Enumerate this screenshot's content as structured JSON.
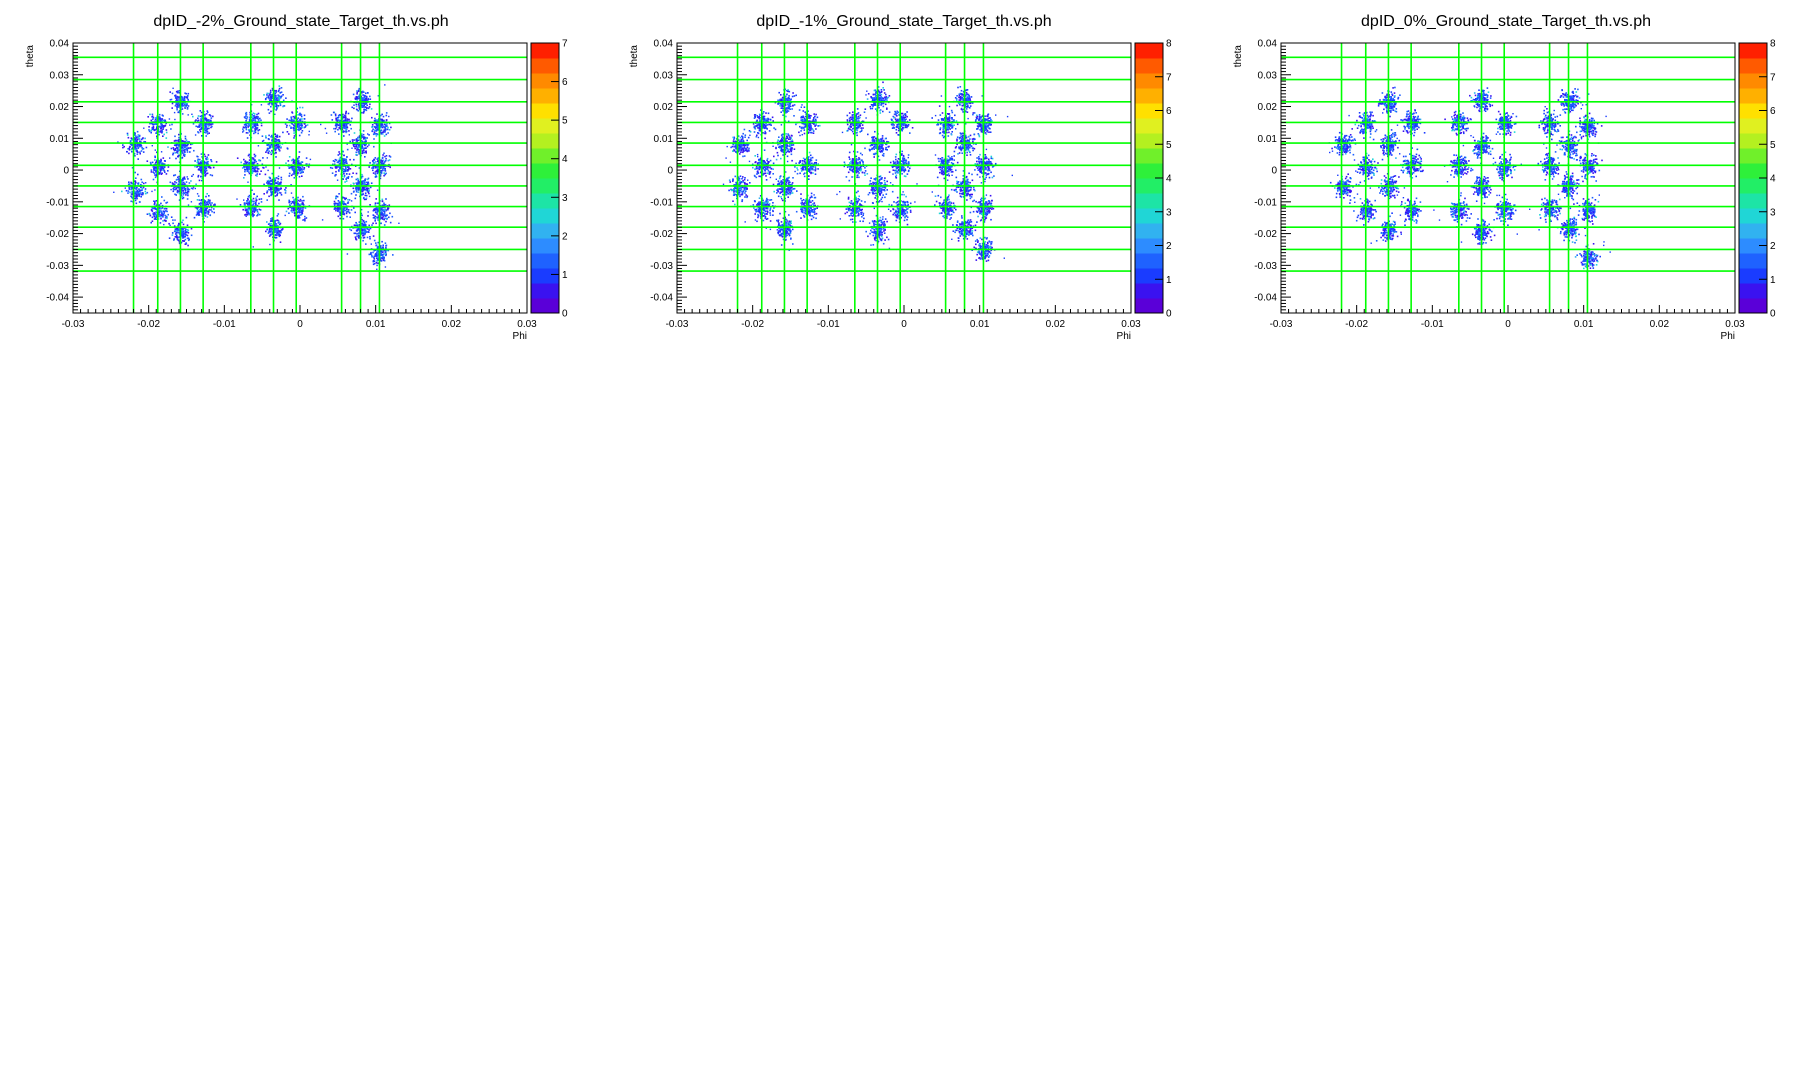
{
  "chart_data": [
    {
      "type": "heatmap",
      "title": "dpID_-2%_Ground_state_Target_th.vs.ph",
      "xlabel": "Phi",
      "ylabel": "theta",
      "xlim": [
        -0.03,
        0.03
      ],
      "ylim": [
        -0.045,
        0.04
      ],
      "x_ticks": [
        "-0.03",
        "-0.02",
        "-0.01",
        "0",
        "0.01",
        "0.02",
        "0.03"
      ],
      "y_ticks": [
        "-0.04",
        "-0.03",
        "-0.02",
        "-0.01",
        "0",
        "0.01",
        "0.02",
        "0.03",
        "0.04"
      ],
      "zlim": [
        0,
        7
      ],
      "z_ticks": [
        "0",
        "1",
        "2",
        "3",
        "4",
        "5",
        "6",
        "7"
      ],
      "grid_x": [
        -0.022,
        -0.0188,
        -0.0158,
        -0.0128,
        -0.0065,
        -0.0035,
        -0.0005,
        0.0055,
        0.008,
        0.0105
      ],
      "grid_y": [
        0.0355,
        0.0285,
        0.0215,
        0.015,
        0.0085,
        0.0015,
        -0.005,
        -0.0115,
        -0.018,
        -0.025,
        -0.0318
      ],
      "clusters": [
        [
          -0.0218,
          0.0082
        ],
        [
          -0.0218,
          -0.0062
        ],
        [
          -0.0188,
          0.0145
        ],
        [
          -0.0188,
          0.0012
        ],
        [
          -0.0188,
          -0.013
        ],
        [
          -0.0158,
          0.0215
        ],
        [
          -0.0158,
          0.0078
        ],
        [
          -0.0158,
          -0.0052
        ],
        [
          -0.0158,
          -0.0195
        ],
        [
          -0.0128,
          0.0148
        ],
        [
          -0.0128,
          0.0012
        ],
        [
          -0.0128,
          -0.0118
        ],
        [
          -0.0065,
          0.0148
        ],
        [
          -0.0065,
          0.0015
        ],
        [
          -0.0065,
          -0.0112
        ],
        [
          -0.0035,
          0.0225
        ],
        [
          -0.0035,
          0.0085
        ],
        [
          -0.0035,
          -0.0045
        ],
        [
          -0.0035,
          -0.018
        ],
        [
          -0.0005,
          0.015
        ],
        [
          -0.0005,
          0.0012
        ],
        [
          -0.0005,
          -0.0115
        ],
        [
          0.0055,
          0.015
        ],
        [
          0.0055,
          0.0015
        ],
        [
          0.0055,
          -0.0115
        ],
        [
          0.008,
          0.022
        ],
        [
          0.008,
          0.0082
        ],
        [
          0.008,
          -0.0052
        ],
        [
          0.008,
          -0.0185
        ],
        [
          0.0105,
          0.0142
        ],
        [
          0.0105,
          0.0015
        ],
        [
          0.0105,
          -0.0128
        ],
        [
          0.0105,
          -0.026
        ]
      ]
    },
    {
      "type": "heatmap",
      "title": "dpID_-1%_Ground_state_Target_th.vs.ph",
      "xlabel": "Phi",
      "ylabel": "theta",
      "xlim": [
        -0.03,
        0.03
      ],
      "ylim": [
        -0.045,
        0.04
      ],
      "x_ticks": [
        "-0.03",
        "-0.02",
        "-0.01",
        "0",
        "0.01",
        "0.02",
        "0.03"
      ],
      "y_ticks": [
        "-0.04",
        "-0.03",
        "-0.02",
        "-0.01",
        "0",
        "0.01",
        "0.02",
        "0.03",
        "0.04"
      ],
      "zlim": [
        0,
        8
      ],
      "z_ticks": [
        "0",
        "1",
        "2",
        "3",
        "4",
        "5",
        "6",
        "7",
        "8"
      ],
      "grid_x": [
        -0.022,
        -0.0188,
        -0.0158,
        -0.0128,
        -0.0065,
        -0.0035,
        -0.0005,
        0.0055,
        0.008,
        0.0105
      ],
      "grid_y": [
        0.0355,
        0.0285,
        0.0215,
        0.015,
        0.0085,
        0.0015,
        -0.005,
        -0.0115,
        -0.018,
        -0.025,
        -0.0318
      ],
      "clusters": [
        [
          -0.0218,
          0.0082
        ],
        [
          -0.0218,
          -0.0052
        ],
        [
          -0.0188,
          0.0148
        ],
        [
          -0.0188,
          0.0015
        ],
        [
          -0.0188,
          -0.0118
        ],
        [
          -0.0158,
          0.0215
        ],
        [
          -0.0158,
          0.0082
        ],
        [
          -0.0158,
          -0.0052
        ],
        [
          -0.0158,
          -0.0185
        ],
        [
          -0.0128,
          0.0152
        ],
        [
          -0.0128,
          0.0015
        ],
        [
          -0.0128,
          -0.0118
        ],
        [
          -0.0065,
          0.0152
        ],
        [
          -0.0065,
          0.0015
        ],
        [
          -0.0065,
          -0.0118
        ],
        [
          -0.0035,
          0.0225
        ],
        [
          -0.0035,
          0.0082
        ],
        [
          -0.0035,
          -0.0052
        ],
        [
          -0.0035,
          -0.0185
        ],
        [
          -0.0005,
          0.0152
        ],
        [
          -0.0005,
          0.0015
        ],
        [
          -0.0005,
          -0.0122
        ],
        [
          0.0055,
          0.015
        ],
        [
          0.0055,
          0.0015
        ],
        [
          0.0055,
          -0.0115
        ],
        [
          0.008,
          0.0222
        ],
        [
          0.008,
          0.0085
        ],
        [
          0.008,
          -0.0052
        ],
        [
          0.008,
          -0.0182
        ],
        [
          0.0105,
          0.015
        ],
        [
          0.0105,
          0.0015
        ],
        [
          0.0105,
          -0.0118
        ],
        [
          0.0105,
          -0.0245
        ]
      ]
    },
    {
      "type": "heatmap",
      "title": "dpID_0%_Ground_state_Target_th.vs.ph",
      "xlabel": "Phi",
      "ylabel": "theta",
      "xlim": [
        -0.03,
        0.03
      ],
      "ylim": [
        -0.045,
        0.04
      ],
      "x_ticks": [
        "-0.03",
        "-0.02",
        "-0.01",
        "0",
        "0.01",
        "0.02",
        "0.03"
      ],
      "y_ticks": [
        "-0.04",
        "-0.03",
        "-0.02",
        "-0.01",
        "0",
        "0.01",
        "0.02",
        "0.03",
        "0.04"
      ],
      "zlim": [
        0,
        8
      ],
      "z_ticks": [
        "0",
        "1",
        "2",
        "3",
        "4",
        "5",
        "6",
        "7",
        "8"
      ],
      "grid_x": [
        -0.022,
        -0.0188,
        -0.0158,
        -0.0128,
        -0.0065,
        -0.0035,
        -0.0005,
        0.0055,
        0.008,
        0.0105
      ],
      "grid_y": [
        0.0355,
        0.0285,
        0.0215,
        0.015,
        0.0085,
        0.0015,
        -0.005,
        -0.0115,
        -0.018,
        -0.025,
        -0.0318
      ],
      "clusters": [
        [
          -0.0218,
          0.0082
        ],
        [
          -0.0218,
          -0.0052
        ],
        [
          -0.0188,
          0.0148
        ],
        [
          -0.0188,
          0.0015
        ],
        [
          -0.0188,
          -0.0128
        ],
        [
          -0.0158,
          0.0215
        ],
        [
          -0.0158,
          0.0082
        ],
        [
          -0.0158,
          -0.0052
        ],
        [
          -0.0158,
          -0.0188
        ],
        [
          -0.0128,
          0.0152
        ],
        [
          -0.0128,
          0.0015
        ],
        [
          -0.0128,
          -0.0125
        ],
        [
          -0.0065,
          0.0152
        ],
        [
          -0.0065,
          0.0015
        ],
        [
          -0.0065,
          -0.0125
        ],
        [
          -0.0035,
          0.0222
        ],
        [
          -0.0035,
          0.0078
        ],
        [
          -0.0035,
          -0.0052
        ],
        [
          -0.0035,
          -0.0192
        ],
        [
          -0.0005,
          0.0148
        ],
        [
          -0.0005,
          0.0012
        ],
        [
          -0.0005,
          -0.0125
        ],
        [
          0.0055,
          0.0148
        ],
        [
          0.0055,
          0.0015
        ],
        [
          0.0055,
          -0.0118
        ],
        [
          0.008,
          0.0218
        ],
        [
          0.008,
          0.0078
        ],
        [
          0.008,
          -0.0045
        ],
        [
          0.008,
          -0.0182
        ],
        [
          0.0105,
          0.0142
        ],
        [
          0.0105,
          0.0015
        ],
        [
          0.0105,
          -0.0125
        ],
        [
          0.0105,
          -0.0275
        ]
      ]
    }
  ]
}
